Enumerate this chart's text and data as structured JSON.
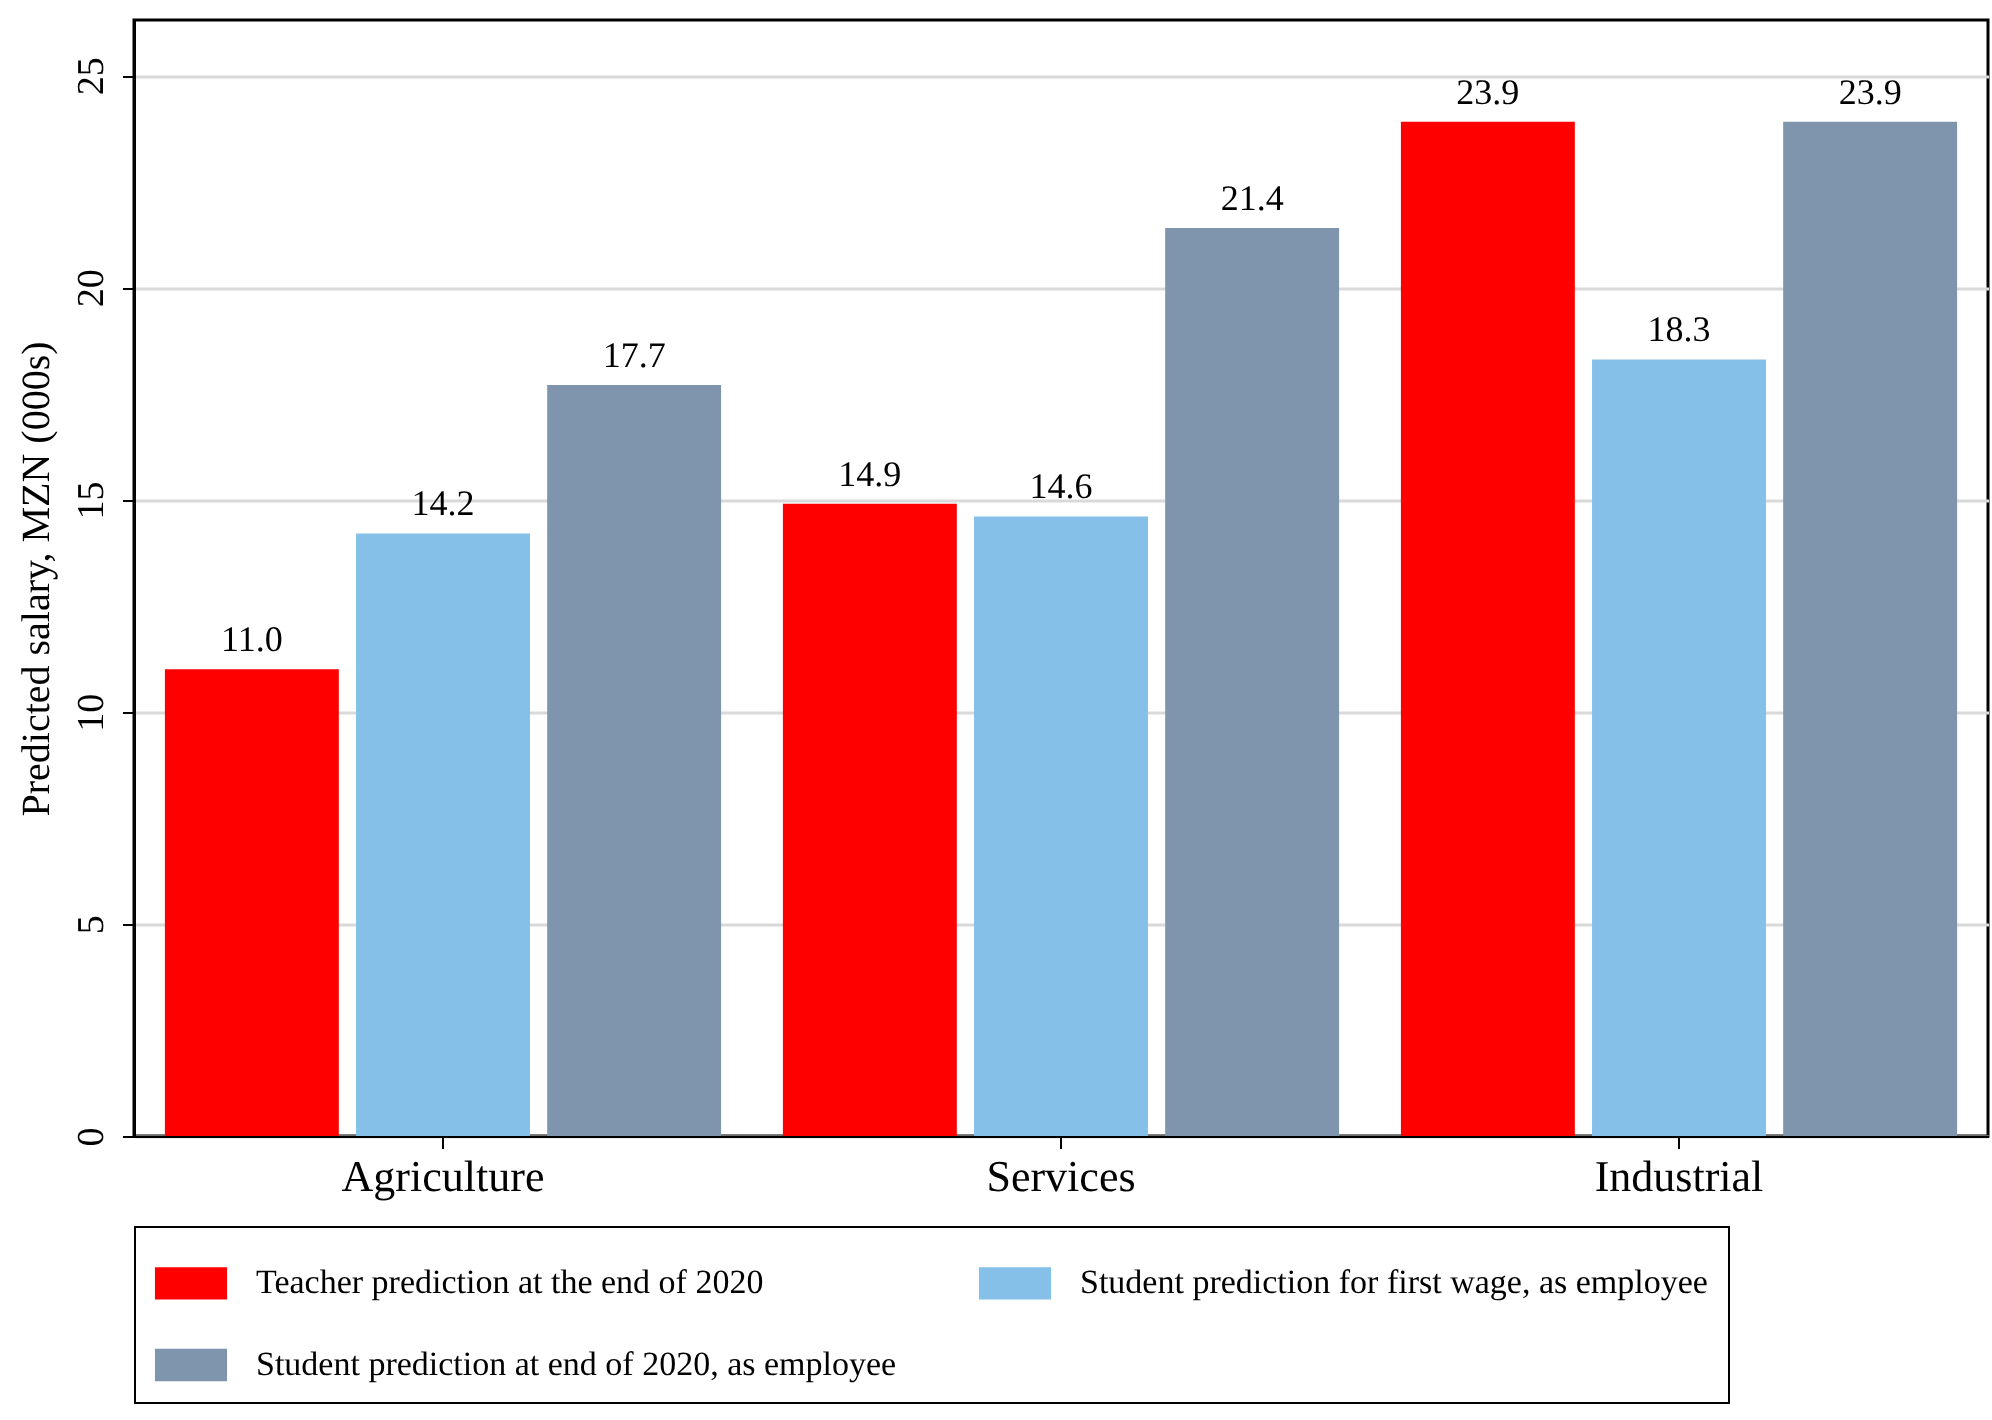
{
  "chart_data": {
    "type": "bar",
    "ylabel": "Predicted salary, MZN (000s)",
    "categories": [
      "Agriculture",
      "Services",
      "Industrial"
    ],
    "series": [
      {
        "name": "Teacher prediction at the end of 2020",
        "color": "#ff0000",
        "values": [
          11.0,
          14.9,
          23.9
        ],
        "value_labels": [
          "11.0",
          "14.9",
          "23.9"
        ]
      },
      {
        "name": "Student prediction for first wage, as employee",
        "color": "#85c0e9",
        "values": [
          14.2,
          14.6,
          18.3
        ],
        "value_labels": [
          "14.2",
          "14.6",
          "18.3"
        ]
      },
      {
        "name": "Student prediction at end of 2020, as employee",
        "color": "#7f95ae",
        "values": [
          17.7,
          21.4,
          23.9
        ],
        "value_labels": [
          "17.7",
          "21.4",
          "23.9"
        ]
      }
    ],
    "ylim": [
      0,
      26.3
    ],
    "yticks": [
      0,
      5,
      10,
      15,
      20,
      25
    ],
    "grid": "y",
    "legend": "bottom"
  }
}
